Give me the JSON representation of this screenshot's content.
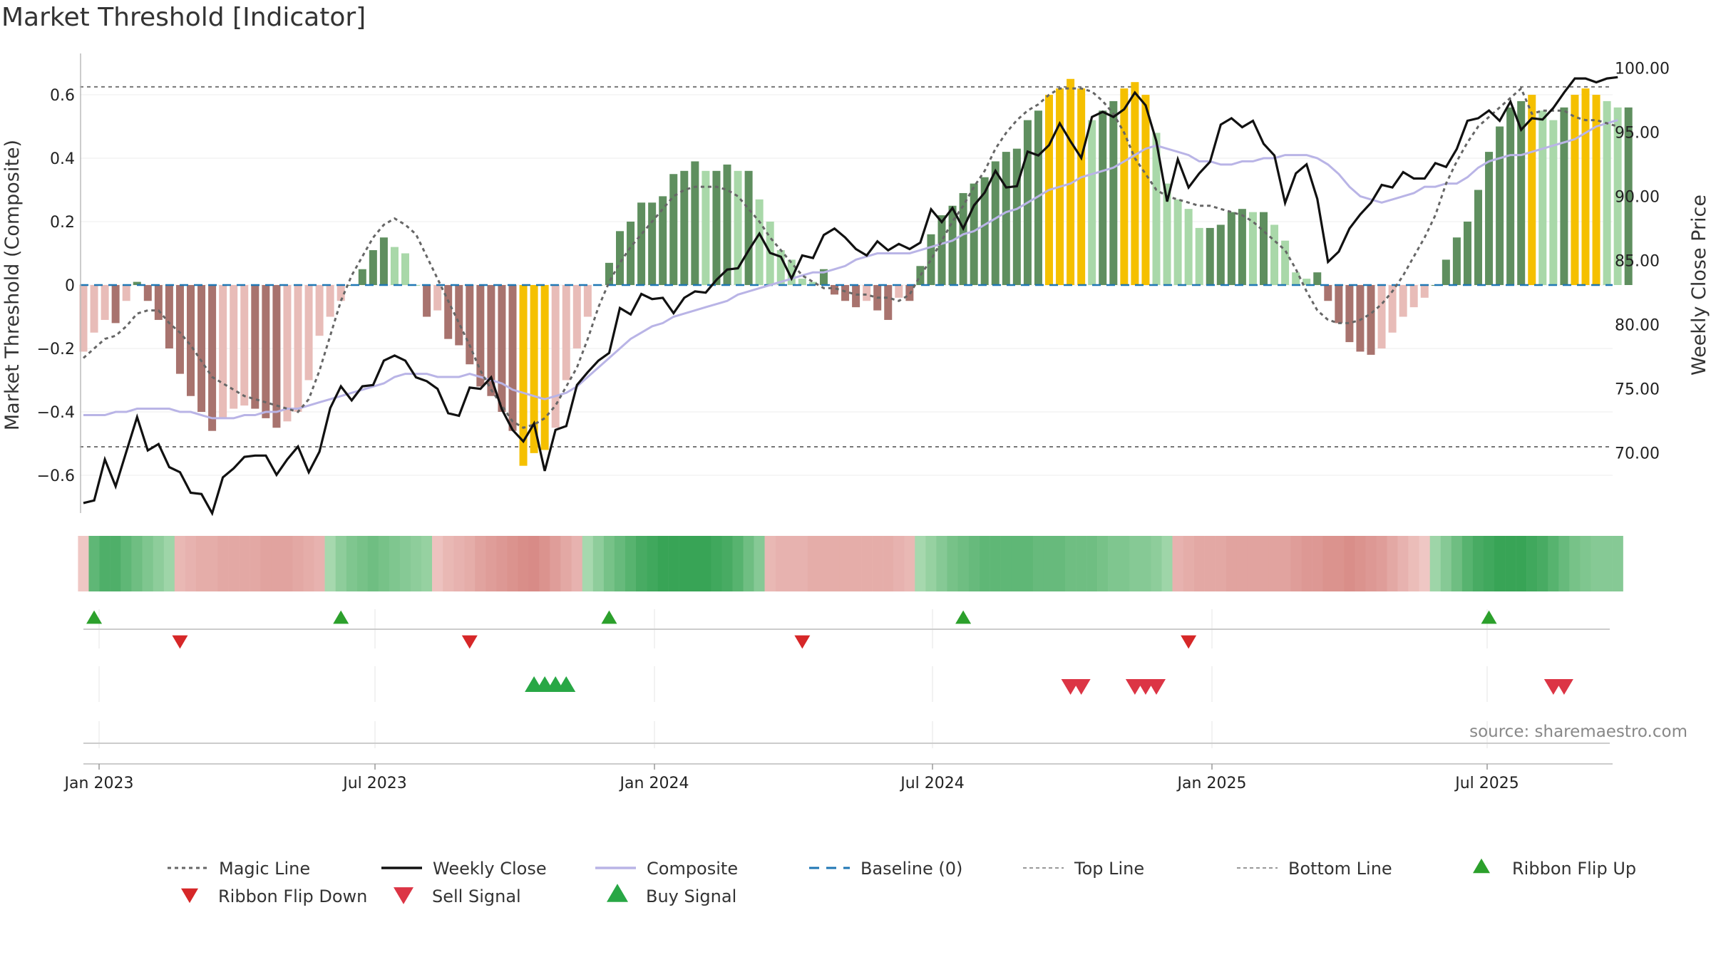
{
  "title": "Market Threshold [Indicator]",
  "source": "source: sharemaestro.com",
  "colors": {
    "magic": "#666666",
    "close": "#111111",
    "composite": "#b9b4e6",
    "baseline": "#1f77b4",
    "bar_pos_dark": "#5f8f5f",
    "bar_pos_light": "#a9d8a9",
    "bar_neg_dark": "#a8736e",
    "bar_neg_light": "#e8bcb8",
    "bar_extreme": "#f5c000",
    "flip_up": "#2ca02c",
    "flip_down": "#d62728",
    "sell": "#dc3545",
    "buy": "#28a745"
  },
  "chart_data": {
    "type": "bar",
    "title": "Market Threshold [Indicator]",
    "ylabel": "Market Threshold (Composite)",
    "y2label": "Weekly Close Price",
    "ylim": [
      -0.72,
      0.72
    ],
    "y2lim": [
      65.7,
      102.3
    ],
    "yticks": [
      "0.6",
      "0.4",
      "0.2",
      "0",
      "−0.2",
      "−0.4",
      "−0.6"
    ],
    "y2ticks": [
      "100.00",
      "95.00",
      "90.00",
      "85.00",
      "80.00",
      "75.00",
      "70.00"
    ],
    "xticks": [
      "Jan 2023",
      "Jul 2023",
      "Jan 2024",
      "Jul 2024",
      "Jan 2025",
      "Jul 2025"
    ],
    "top_line": 0.625,
    "bottom_line": -0.51,
    "bars": [
      -0.21,
      -0.15,
      -0.11,
      -0.12,
      -0.05,
      0.01,
      -0.05,
      -0.11,
      -0.2,
      -0.28,
      -0.35,
      -0.4,
      -0.46,
      -0.42,
      -0.39,
      -0.38,
      -0.39,
      -0.42,
      -0.45,
      -0.43,
      -0.4,
      -0.3,
      -0.16,
      -0.1,
      -0.05,
      0,
      0.05,
      0.11,
      0.15,
      0.12,
      0.1,
      0,
      -0.1,
      -0.08,
      -0.17,
      -0.19,
      -0.25,
      -0.32,
      -0.35,
      -0.4,
      -0.46,
      -0.57,
      -0.53,
      -0.52,
      -0.45,
      -0.3,
      -0.2,
      -0.1,
      0,
      0.07,
      0.17,
      0.2,
      0.26,
      0.26,
      0.28,
      0.35,
      0.36,
      0.39,
      0.36,
      0.36,
      0.38,
      0.36,
      0.36,
      0.27,
      0.2,
      0.11,
      0.08,
      0.02,
      0.01,
      0.05,
      -0.03,
      -0.05,
      -0.07,
      -0.05,
      -0.08,
      -0.11,
      -0.04,
      -0.05,
      0.06,
      0.16,
      0.22,
      0.25,
      0.29,
      0.32,
      0.34,
      0.39,
      0.42,
      0.43,
      0.52,
      0.55,
      0.6,
      0.62,
      0.65,
      0.62,
      0.52,
      0.55,
      0.58,
      0.62,
      0.64,
      0.6,
      0.48,
      0.32,
      0.27,
      0.24,
      0.18,
      0.18,
      0.19,
      0.23,
      0.24,
      0.23,
      0.23,
      0.19,
      0.14,
      0.04,
      0.02,
      0.04,
      -0.05,
      -0.12,
      -0.18,
      -0.21,
      -0.22,
      -0.2,
      -0.15,
      -0.1,
      -0.07,
      -0.04,
      0,
      0.08,
      0.15,
      0.2,
      0.3,
      0.42,
      0.5,
      0.56,
      0.58,
      0.6,
      0.55,
      0.52,
      0.56,
      0.6,
      0.62,
      0.6,
      0.58,
      0.56,
      0.56
    ],
    "close": [
      66.1,
      66.3,
      69.5,
      67.4,
      70.1,
      72.8,
      70.2,
      70.7,
      68.9,
      68.5,
      66.9,
      66.8,
      65.3,
      68.1,
      68.8,
      69.7,
      69.8,
      69.8,
      68.3,
      69.5,
      70.5,
      68.5,
      70.1,
      73.5,
      75.2,
      74.1,
      75.2,
      75.3,
      77.2,
      77.6,
      77.2,
      75.9,
      75.6,
      75.0,
      73.1,
      72.9,
      75.1,
      75.0,
      75.9,
      73.4,
      71.8,
      70.9,
      72.3,
      68.6,
      71.8,
      72.1,
      75.3,
      76.3,
      77.2,
      77.8,
      81.3,
      80.8,
      82.4,
      82.0,
      82.1,
      80.9,
      82.1,
      82.6,
      82.5,
      83.5,
      84.3,
      84.4,
      85.8,
      87.1,
      85.6,
      85.3,
      83.6,
      85.4,
      85.2,
      87.0,
      87.5,
      86.8,
      85.9,
      85.4,
      86.5,
      85.8,
      86.3,
      85.9,
      86.4,
      89.0,
      88.0,
      89.1,
      87.5,
      89.3,
      90.3,
      92.0,
      90.7,
      90.8,
      93.5,
      93.2,
      94.0,
      95.7,
      94.3,
      93.0,
      96.2,
      96.6,
      96.2,
      96.8,
      98.1,
      97.1,
      94.3,
      89.6,
      92.9,
      90.7,
      91.8,
      92.7,
      95.6,
      96.1,
      95.4,
      95.9,
      94.1,
      93.2,
      89.5,
      91.8,
      92.5,
      89.8,
      84.9,
      85.7,
      87.5,
      88.6,
      89.5,
      90.9,
      90.7,
      91.9,
      91.4,
      91.4,
      92.6,
      92.3,
      93.7,
      95.9,
      96.1,
      96.7,
      95.9,
      97.4,
      95.2,
      96.1,
      96.0,
      96.9,
      98.1,
      99.2,
      99.2,
      98.9,
      99.2,
      99.3
    ],
    "composite": [
      -0.41,
      -0.41,
      -0.41,
      -0.4,
      -0.4,
      -0.39,
      -0.39,
      -0.39,
      -0.39,
      -0.4,
      -0.4,
      -0.41,
      -0.42,
      -0.42,
      -0.42,
      -0.41,
      -0.41,
      -0.4,
      -0.4,
      -0.39,
      -0.39,
      -0.38,
      -0.37,
      -0.36,
      -0.35,
      -0.34,
      -0.33,
      -0.32,
      -0.31,
      -0.29,
      -0.28,
      -0.28,
      -0.28,
      -0.29,
      -0.29,
      -0.29,
      -0.28,
      -0.29,
      -0.3,
      -0.31,
      -0.33,
      -0.34,
      -0.35,
      -0.36,
      -0.35,
      -0.34,
      -0.32,
      -0.29,
      -0.26,
      -0.23,
      -0.2,
      -0.17,
      -0.15,
      -0.13,
      -0.12,
      -0.1,
      -0.09,
      -0.08,
      -0.07,
      -0.06,
      -0.05,
      -0.03,
      -0.02,
      -0.01,
      0.0,
      0.01,
      0.02,
      0.03,
      0.04,
      0.04,
      0.05,
      0.06,
      0.08,
      0.09,
      0.1,
      0.1,
      0.1,
      0.1,
      0.11,
      0.12,
      0.13,
      0.14,
      0.16,
      0.17,
      0.19,
      0.21,
      0.23,
      0.24,
      0.26,
      0.28,
      0.3,
      0.31,
      0.32,
      0.34,
      0.35,
      0.36,
      0.37,
      0.39,
      0.41,
      0.43,
      0.44,
      0.43,
      0.42,
      0.41,
      0.39,
      0.39,
      0.38,
      0.38,
      0.39,
      0.39,
      0.4,
      0.4,
      0.41,
      0.41,
      0.41,
      0.4,
      0.38,
      0.35,
      0.31,
      0.28,
      0.27,
      0.26,
      0.27,
      0.28,
      0.29,
      0.31,
      0.31,
      0.32,
      0.32,
      0.34,
      0.37,
      0.39,
      0.4,
      0.41,
      0.41,
      0.42,
      0.43,
      0.44,
      0.45,
      0.46,
      0.48,
      0.5,
      0.51,
      0.52
    ],
    "magic": [
      -0.23,
      -0.2,
      -0.17,
      -0.16,
      -0.13,
      -0.09,
      -0.08,
      -0.08,
      -0.12,
      -0.15,
      -0.19,
      -0.24,
      -0.29,
      -0.31,
      -0.33,
      -0.35,
      -0.36,
      -0.37,
      -0.38,
      -0.39,
      -0.4,
      -0.36,
      -0.27,
      -0.16,
      -0.05,
      0.03,
      0.09,
      0.15,
      0.19,
      0.21,
      0.19,
      0.16,
      0.09,
      0.02,
      -0.05,
      -0.12,
      -0.19,
      -0.27,
      -0.33,
      -0.38,
      -0.43,
      -0.45,
      -0.44,
      -0.42,
      -0.38,
      -0.32,
      -0.26,
      -0.17,
      -0.07,
      0.01,
      0.07,
      0.12,
      0.16,
      0.2,
      0.24,
      0.28,
      0.3,
      0.31,
      0.31,
      0.31,
      0.3,
      0.28,
      0.24,
      0.2,
      0.15,
      0.11,
      0.07,
      0.03,
      0.01,
      -0.01,
      -0.01,
      -0.02,
      -0.03,
      -0.03,
      -0.04,
      -0.04,
      -0.05,
      -0.03,
      0.03,
      0.08,
      0.14,
      0.2,
      0.25,
      0.31,
      0.36,
      0.43,
      0.48,
      0.52,
      0.55,
      0.57,
      0.6,
      0.62,
      0.62,
      0.62,
      0.61,
      0.58,
      0.54,
      0.48,
      0.4,
      0.35,
      0.3,
      0.28,
      0.27,
      0.26,
      0.25,
      0.25,
      0.24,
      0.23,
      0.22,
      0.2,
      0.17,
      0.14,
      0.11,
      0.05,
      -0.02,
      -0.08,
      -0.11,
      -0.12,
      -0.12,
      -0.11,
      -0.09,
      -0.06,
      -0.02,
      0.03,
      0.09,
      0.15,
      0.22,
      0.32,
      0.39,
      0.45,
      0.5,
      0.53,
      0.56,
      0.59,
      0.62,
      0.54,
      0.55,
      0.55,
      0.55,
      0.53,
      0.52,
      0.52,
      0.51,
      0.5
    ],
    "ribbon": [
      -0.15,
      0.7,
      0.8,
      0.8,
      0.7,
      0.6,
      0.5,
      0.4,
      0.3,
      -0.3,
      -0.35,
      -0.4,
      -0.4,
      -0.45,
      -0.45,
      -0.45,
      -0.45,
      -0.5,
      -0.5,
      -0.5,
      -0.45,
      -0.4,
      -0.35,
      0.25,
      0.4,
      0.5,
      0.55,
      0.6,
      0.55,
      0.5,
      0.45,
      0.4,
      0.35,
      -0.2,
      -0.3,
      -0.35,
      -0.4,
      -0.5,
      -0.55,
      -0.6,
      -0.65,
      -0.7,
      -0.72,
      -0.65,
      -0.55,
      -0.45,
      -0.35,
      0.25,
      0.4,
      0.55,
      0.65,
      0.75,
      0.85,
      0.9,
      0.95,
      0.95,
      0.95,
      0.95,
      0.95,
      0.9,
      0.85,
      0.75,
      0.6,
      0.45,
      -0.3,
      -0.35,
      -0.35,
      -0.35,
      -0.4,
      -0.4,
      -0.4,
      -0.4,
      -0.4,
      -0.4,
      -0.4,
      -0.4,
      -0.35,
      -0.3,
      0.25,
      0.35,
      0.45,
      0.55,
      0.6,
      0.65,
      0.7,
      0.7,
      0.7,
      0.7,
      0.7,
      0.65,
      0.65,
      0.65,
      0.6,
      0.6,
      0.6,
      0.55,
      0.5,
      0.5,
      0.45,
      0.45,
      0.4,
      0.3,
      -0.35,
      -0.4,
      -0.45,
      -0.45,
      -0.45,
      -0.5,
      -0.5,
      -0.5,
      -0.5,
      -0.5,
      -0.5,
      -0.55,
      -0.6,
      -0.6,
      -0.65,
      -0.65,
      -0.7,
      -0.65,
      -0.6,
      -0.55,
      -0.45,
      -0.35,
      -0.25,
      -0.15,
      0.3,
      0.45,
      0.6,
      0.75,
      0.85,
      0.9,
      0.95,
      0.95,
      0.95,
      0.9,
      0.85,
      0.75,
      0.65,
      0.55,
      0.5,
      0.45,
      0.45,
      0.45
    ],
    "flip_up": [
      1,
      24,
      49,
      82,
      131
    ],
    "flip_down": [
      9,
      36,
      67,
      103
    ],
    "buy_signals": [
      42,
      43,
      44,
      45
    ],
    "sell_signals": [
      92,
      93,
      98,
      99,
      100,
      137,
      138
    ],
    "legend": [
      "Magic Line",
      "Weekly Close",
      "Composite",
      "Baseline (0)",
      "Top Line",
      "Bottom Line",
      "Ribbon Flip Up",
      "Ribbon Flip Down",
      "Sell Signal",
      "Buy Signal"
    ]
  }
}
